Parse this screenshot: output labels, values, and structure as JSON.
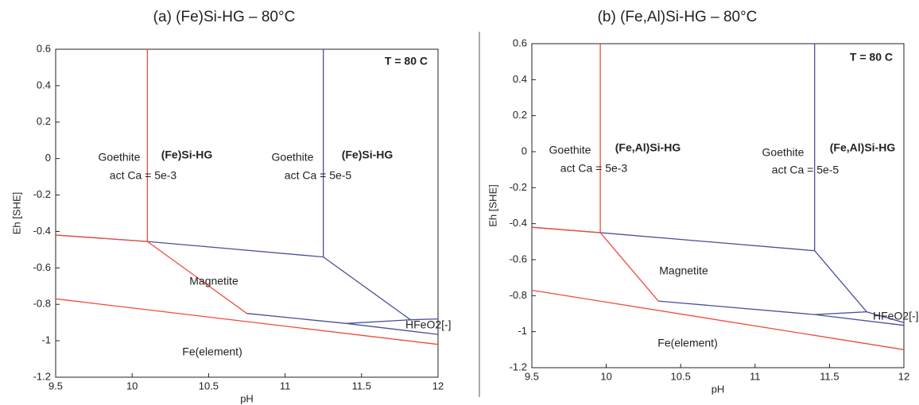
{
  "chart_data": [
    {
      "type": "line",
      "title": "(a) (Fe)Si-HG – 80°C",
      "x_label": "pH",
      "y_label": "Eh [SHE]",
      "xlim": [
        9.5,
        12
      ],
      "ylim": [
        -1.2,
        0.6
      ],
      "xticks": [
        9.5,
        10,
        10.5,
        11,
        11.5,
        12
      ],
      "yticks": [
        -1.2,
        -1,
        -0.8,
        -0.6,
        -0.4,
        -0.2,
        0,
        0.2,
        0.4,
        0.6
      ],
      "series": [
        {
          "color": "#4a4e9a",
          "x": [
            9.5,
            10.1,
            11.25,
            11.25
          ],
          "values": [
            -0.42,
            -0.455,
            -0.54,
            0.6
          ]
        },
        {
          "color": "#4a4e9a",
          "x": [
            11.25,
            11.82,
            11.4
          ],
          "values": [
            -0.54,
            -0.885,
            -0.905
          ]
        },
        {
          "color": "#4a4e9a",
          "x": [
            10.75,
            11.4,
            12
          ],
          "values": [
            -0.85,
            -0.905,
            -0.965
          ]
        },
        {
          "color": "#4a4e9a",
          "x": [
            11.82,
            12
          ],
          "values": [
            -0.885,
            -0.88
          ]
        },
        {
          "color": "#f04a3a",
          "x": [
            9.5,
            10.1,
            10.1
          ],
          "values": [
            -0.42,
            -0.455,
            0.6
          ]
        },
        {
          "color": "#f04a3a",
          "x": [
            10.1,
            10.75
          ],
          "values": [
            -0.455,
            -0.85
          ]
        },
        {
          "color": "#f04a3a",
          "x": [
            9.5,
            12
          ],
          "values": [
            -0.77,
            -1.02
          ]
        }
      ],
      "annotations": [
        {
          "text": "T = 80 C",
          "color": "#111111"
        },
        {
          "text": "Goethite",
          "color": "#f04a3a"
        },
        {
          "text": "act Ca = 5e-3",
          "color": "#f04a3a"
        },
        {
          "text": "(Fe)Si-HG",
          "color": "#f04a3a"
        },
        {
          "text": "Goethite",
          "color": "#222222"
        },
        {
          "text": "act Ca = 5e-5",
          "color": "#222222"
        },
        {
          "text": "(Fe)Si-HG",
          "color": "#111111"
        },
        {
          "text": "Magnetite",
          "color": "#222222"
        },
        {
          "text": "HFeO2[-]",
          "color": "#222222"
        },
        {
          "text": "Fe(element)",
          "color": "#222222"
        }
      ]
    },
    {
      "type": "line",
      "title": "(b) (Fe,Al)Si-HG – 80°C",
      "x_label": "pH",
      "y_label": "Eh [SHE]",
      "xlim": [
        9.5,
        12
      ],
      "ylim": [
        -1.2,
        0.6
      ],
      "xticks": [
        9.5,
        10,
        10.5,
        11,
        11.5,
        12
      ],
      "yticks": [
        -1.2,
        -1,
        -0.8,
        -0.6,
        -0.4,
        -0.2,
        0,
        0.2,
        0.4,
        0.6
      ],
      "series": [
        {
          "color": "#4a4e9a",
          "x": [
            9.5,
            9.96,
            11.4,
            11.4
          ],
          "values": [
            -0.42,
            -0.45,
            -0.55,
            0.6
          ]
        },
        {
          "color": "#4a4e9a",
          "x": [
            11.4,
            11.75,
            11.4
          ],
          "values": [
            -0.55,
            -0.89,
            -0.905
          ]
        },
        {
          "color": "#4a4e9a",
          "x": [
            10.35,
            11.4,
            12
          ],
          "values": [
            -0.83,
            -0.905,
            -0.965
          ]
        },
        {
          "color": "#4a4e9a",
          "x": [
            11.75,
            12
          ],
          "values": [
            -0.89,
            -0.95
          ]
        },
        {
          "color": "#f04a3a",
          "x": [
            9.5,
            9.96,
            9.96
          ],
          "values": [
            -0.42,
            -0.45,
            0.6
          ]
        },
        {
          "color": "#f04a3a",
          "x": [
            9.96,
            10.35
          ],
          "values": [
            -0.45,
            -0.83
          ]
        },
        {
          "color": "#f04a3a",
          "x": [
            9.5,
            12
          ],
          "values": [
            -0.77,
            -1.1
          ]
        }
      ],
      "annotations": [
        {
          "text": "T = 80 C",
          "color": "#111111"
        },
        {
          "text": "Goethite",
          "color": "#f04a3a"
        },
        {
          "text": "act Ca = 5e-3",
          "color": "#f04a3a"
        },
        {
          "text": "(Fe,Al)Si-HG",
          "color": "#f04a3a"
        },
        {
          "text": "Goethite",
          "color": "#222222"
        },
        {
          "text": "act Ca = 5e-5",
          "color": "#222222"
        },
        {
          "text": "(Fe,Al)Si-HG",
          "color": "#111111"
        },
        {
          "text": "Magnetite",
          "color": "#222222"
        },
        {
          "text": "HFeO2[-]",
          "color": "#222222"
        },
        {
          "text": "Fe(element)",
          "color": "#222222"
        }
      ]
    }
  ]
}
